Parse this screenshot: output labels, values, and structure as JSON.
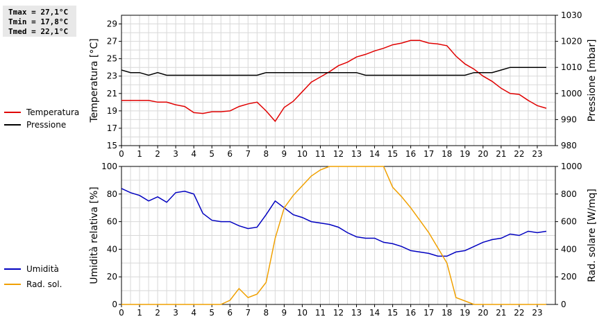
{
  "summary": {
    "tmax": "Tmax = 27,1°C",
    "tmin": "Tmin = 17,8°C",
    "tmed": "Tmed = 22,1°C"
  },
  "chart_data": [
    {
      "type": "line",
      "xlim": [
        0,
        24
      ],
      "x_ticks": [
        "0",
        "1",
        "2",
        "3",
        "4",
        "5",
        "6",
        "7",
        "8",
        "9",
        "10",
        "11",
        "12",
        "13",
        "14",
        "15",
        "16",
        "17",
        "18",
        "19",
        "20",
        "21",
        "22",
        "23"
      ],
      "ylabel": "Temperatura [°C]",
      "ylim": [
        15,
        30
      ],
      "y_ticks": [
        "15",
        "17",
        "19",
        "21",
        "23",
        "25",
        "27",
        "29"
      ],
      "ylabel_right": "Pressione [mbar]",
      "ylim_right": [
        980,
        1030
      ],
      "y_ticks_right": [
        "980",
        "990",
        "1000",
        "1010",
        "1020",
        "1030"
      ],
      "grid": true,
      "series": [
        {
          "name": "Temperatura",
          "color": "#e00000",
          "axis": "left",
          "x": [
            0,
            0.5,
            1,
            1.5,
            2,
            2.5,
            3,
            3.5,
            4,
            4.5,
            5,
            5.5,
            6,
            6.5,
            7,
            7.5,
            8,
            8.5,
            9,
            9.5,
            10,
            10.5,
            11,
            11.5,
            12,
            12.5,
            13,
            13.5,
            14,
            14.5,
            15,
            15.5,
            16,
            16.5,
            17,
            17.5,
            18,
            18.5,
            19,
            19.5,
            20,
            20.5,
            21,
            21.5,
            22,
            22.5,
            23,
            23.5
          ],
          "y": [
            20.2,
            20.2,
            20.2,
            20.2,
            20.0,
            20.0,
            19.7,
            19.5,
            18.8,
            18.7,
            18.9,
            18.9,
            19.0,
            19.5,
            19.8,
            20.0,
            19.0,
            17.8,
            19.4,
            20.1,
            21.2,
            22.3,
            22.9,
            23.5,
            24.2,
            24.6,
            25.2,
            25.5,
            25.9,
            26.2,
            26.6,
            26.8,
            27.1,
            27.1,
            26.8,
            26.7,
            26.5,
            25.3,
            24.4,
            23.8,
            23.0,
            22.4,
            21.6,
            21.0,
            20.9,
            20.2,
            19.6,
            19.3
          ]
        },
        {
          "name": "Pressione",
          "color": "#000000",
          "axis": "right",
          "x": [
            0,
            0.5,
            1,
            1.5,
            2,
            2.5,
            3,
            3.5,
            4,
            4.5,
            5,
            5.5,
            6,
            6.5,
            7,
            7.5,
            8,
            8.5,
            9,
            9.5,
            10,
            10.5,
            11,
            11.5,
            12,
            12.5,
            13,
            13.5,
            14,
            14.5,
            15,
            15.5,
            16,
            16.5,
            17,
            17.5,
            18,
            18.5,
            19,
            19.5,
            20,
            20.5,
            21,
            21.5,
            22,
            22.5,
            23,
            23.5
          ],
          "y": [
            1009,
            1008,
            1008,
            1007,
            1008,
            1007,
            1007,
            1007,
            1007,
            1007,
            1007,
            1007,
            1007,
            1007,
            1007,
            1007,
            1008,
            1008,
            1008,
            1008,
            1008,
            1008,
            1008,
            1008,
            1008,
            1008,
            1008,
            1007,
            1007,
            1007,
            1007,
            1007,
            1007,
            1007,
            1007,
            1007,
            1007,
            1007,
            1007,
            1008,
            1008,
            1008,
            1009,
            1010,
            1010,
            1010,
            1010,
            1010
          ]
        }
      ]
    },
    {
      "type": "line",
      "xlim": [
        0,
        24
      ],
      "x_ticks": [
        "0",
        "1",
        "2",
        "3",
        "4",
        "5",
        "6",
        "7",
        "8",
        "9",
        "10",
        "11",
        "12",
        "13",
        "14",
        "15",
        "16",
        "17",
        "18",
        "19",
        "20",
        "21",
        "22",
        "23"
      ],
      "ylabel": "Umidità relativa [%]",
      "ylim": [
        0,
        100
      ],
      "y_ticks": [
        "0",
        "20",
        "40",
        "60",
        "80",
        "100"
      ],
      "ylabel_right": "Rad. solare [W/mq]",
      "ylim_right": [
        0,
        1000
      ],
      "y_ticks_right": [
        "0",
        "200",
        "400",
        "600",
        "800",
        "1000"
      ],
      "grid": true,
      "series": [
        {
          "name": "Umidità",
          "color": "#0000c0",
          "axis": "left",
          "x": [
            0,
            0.5,
            1,
            1.5,
            2,
            2.5,
            3,
            3.5,
            4,
            4.5,
            5,
            5.5,
            6,
            6.5,
            7,
            7.5,
            8,
            8.5,
            9,
            9.5,
            10,
            10.5,
            11,
            11.5,
            12,
            12.5,
            13,
            13.5,
            14,
            14.5,
            15,
            15.5,
            16,
            16.5,
            17,
            17.5,
            18,
            18.5,
            19,
            19.5,
            20,
            20.5,
            21,
            21.5,
            22,
            22.5,
            23,
            23.5
          ],
          "y": [
            84,
            81,
            79,
            75,
            78,
            74,
            81,
            82,
            80,
            66,
            61,
            60,
            60,
            57,
            55,
            56,
            65,
            75,
            70,
            65,
            63,
            60,
            59,
            58,
            56,
            52,
            49,
            48,
            48,
            45,
            44,
            42,
            39,
            38,
            37,
            35,
            35,
            38,
            39,
            42,
            45,
            47,
            48,
            51,
            50,
            53,
            52,
            53
          ]
        },
        {
          "name": "Rad. sol.",
          "color": "#f0a000",
          "axis": "right",
          "x": [
            0,
            5.5,
            6,
            6.5,
            7,
            7.5,
            8,
            8.5,
            9,
            9.5,
            10,
            10.5,
            11,
            11.5,
            12,
            12.5,
            13,
            13.5,
            14,
            14.5,
            15,
            15.5,
            16,
            16.5,
            17,
            17.5,
            18,
            18.5,
            19,
            19.5,
            20,
            23.5
          ],
          "y": [
            0,
            0,
            30,
            115,
            50,
            75,
            160,
            480,
            700,
            790,
            860,
            930,
            975,
            1000,
            1000,
            1000,
            1000,
            1000,
            1000,
            1000,
            850,
            780,
            700,
            610,
            520,
            410,
            300,
            50,
            25,
            0,
            0,
            0
          ]
        }
      ]
    }
  ]
}
